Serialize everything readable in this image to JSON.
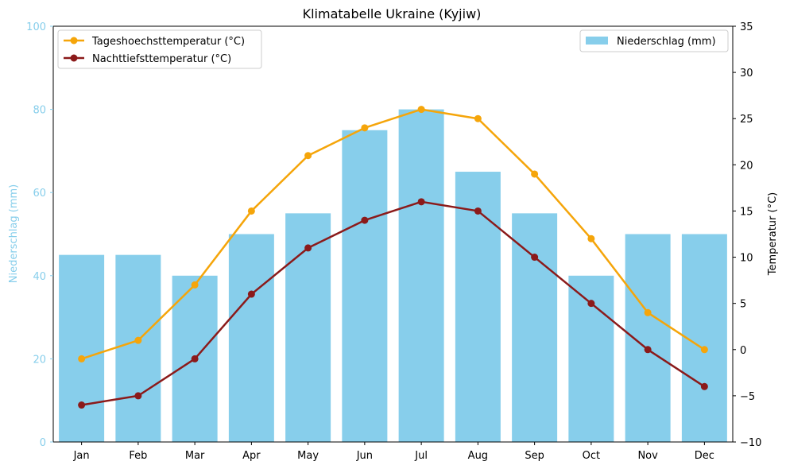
{
  "chart_data": {
    "type": "bar",
    "title": "Klimatabelle Ukraine (Kyjiw)",
    "categories": [
      "Jan",
      "Feb",
      "Mar",
      "Apr",
      "May",
      "Jun",
      "Jul",
      "Aug",
      "Sep",
      "Oct",
      "Nov",
      "Dec"
    ],
    "y_left": {
      "label": "Niederschlag (mm)",
      "range": [
        0,
        100
      ],
      "ticks": [
        0,
        20,
        40,
        60,
        80,
        100
      ],
      "color": "#87ceeb"
    },
    "y_right": {
      "label": "Temperatur (°C)",
      "range": [
        -10,
        35
      ],
      "ticks": [
        -10,
        -5,
        0,
        5,
        10,
        15,
        20,
        25,
        30,
        35
      ],
      "color": "#000000"
    },
    "bar_series": {
      "name": "Niederschlag (mm)",
      "color": "#87ceeb",
      "values": [
        45,
        45,
        40,
        50,
        55,
        75,
        80,
        65,
        55,
        40,
        50,
        50
      ]
    },
    "line_series": [
      {
        "name": "Tageshoechsttemperatur (°C)",
        "color": "#f5a50a",
        "values": [
          -1,
          1,
          7,
          15,
          21,
          24,
          26,
          25,
          19,
          12,
          4,
          0
        ]
      },
      {
        "name": "Nachttiefsttemperatur (°C)",
        "color": "#8b1a1a",
        "values": [
          -6,
          -5,
          -1,
          6,
          11,
          14,
          16,
          15,
          10,
          5,
          0,
          -4
        ]
      }
    ],
    "legend_left_placement": "top-left",
    "legend_right_placement": "top-right",
    "grid": false
  }
}
